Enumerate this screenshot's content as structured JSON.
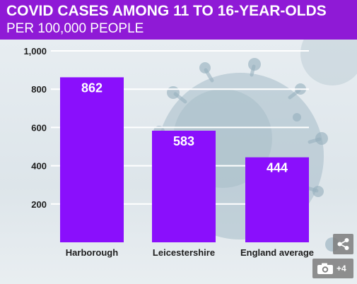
{
  "header": {
    "title": "COVID CASES AMONG 11 TO 16-YEAR-OLDS",
    "subtitle": "PER 100,000 PEOPLE"
  },
  "colors": {
    "brand": "#8f1ad6",
    "bar": "#8a0ffc",
    "text": "#1e1e1e",
    "gridline": "#ffffff"
  },
  "chart_data": {
    "type": "bar",
    "title": "COVID CASES AMONG 11 TO 16-YEAR-OLDS",
    "subtitle": "PER 100,000 PEOPLE",
    "categories": [
      "Harborough",
      "Leicestershire",
      "England average"
    ],
    "values": [
      862,
      583,
      444
    ],
    "value_labels": [
      "862",
      "583",
      "444"
    ],
    "ylim": [
      0,
      1000
    ],
    "yticks": [
      200,
      400,
      600,
      800,
      1000
    ],
    "ytick_labels": [
      "200",
      "400",
      "600",
      "800",
      "1,000"
    ],
    "grid": true,
    "legend": "none"
  },
  "overlay": {
    "share_icon": "share-icon",
    "photo_icon": "camera-icon",
    "photo_count": "+4"
  }
}
